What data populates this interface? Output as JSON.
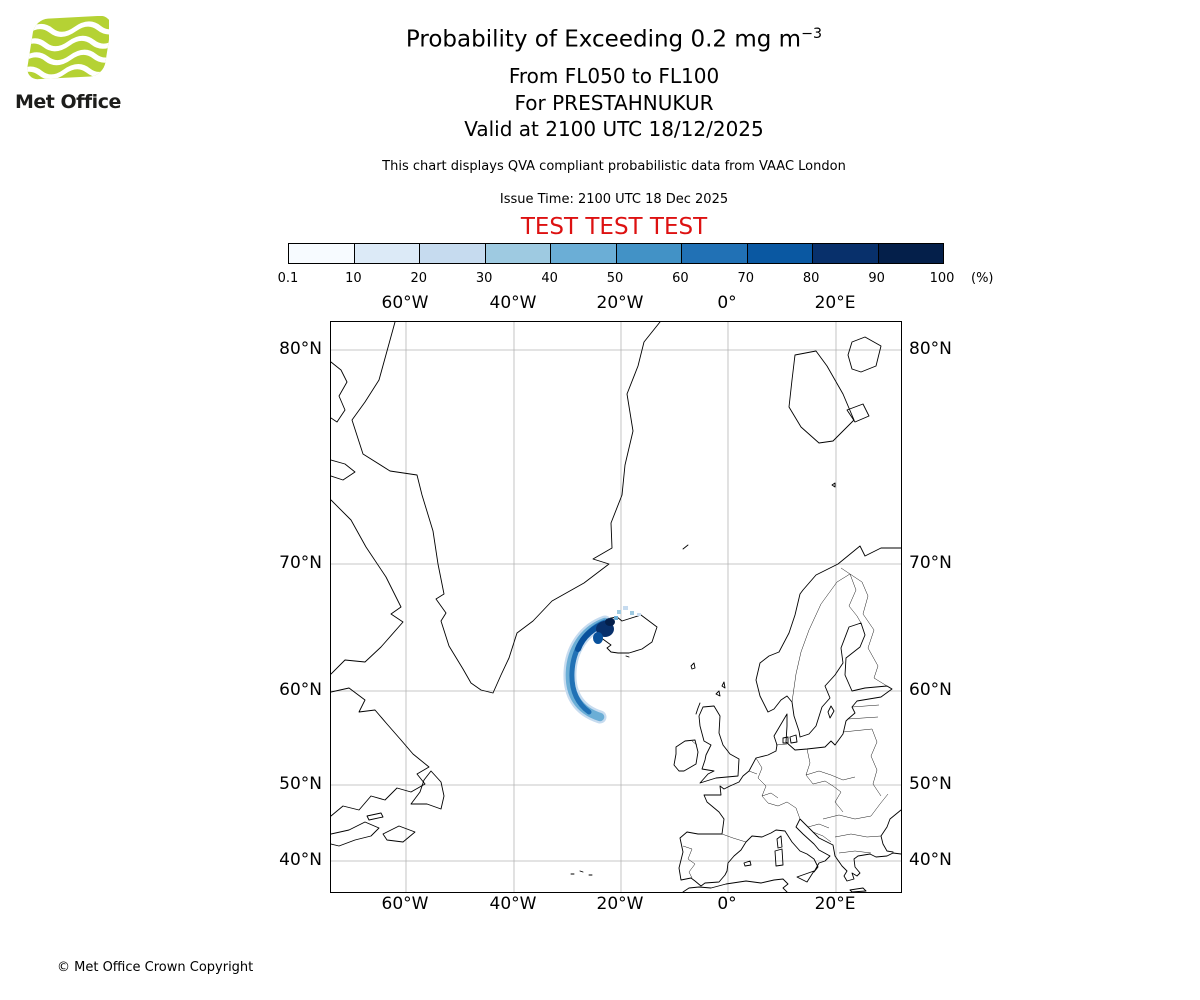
{
  "logo": {
    "brand": "Met Office"
  },
  "header": {
    "title_main": "Probability of Exceeding 0.2 mg m",
    "title_superscript": "−3",
    "flight_levels": "From FL050 to FL100",
    "volcano": "For PRESTAHNUKUR",
    "valid_time": "Valid at 2100 UTC 18/12/2025",
    "description": "This chart displays QVA compliant probabilistic data from VAAC London",
    "issue_time": "Issue Time: 2100 UTC 18 Dec 2025",
    "test_banner": "TEST TEST TEST"
  },
  "colorbar": {
    "tick_labels": [
      "0.1",
      "10",
      "20",
      "30",
      "40",
      "50",
      "60",
      "70",
      "80",
      "90",
      "100"
    ],
    "unit": "(%)",
    "segment_colors": [
      "#f7fbff",
      "#dceaf7",
      "#c6dbef",
      "#9ecae1",
      "#6baed6",
      "#4292c6",
      "#2171b5",
      "#0a58a2",
      "#08306b",
      "#041f4a"
    ]
  },
  "map": {
    "x_tick_labels": [
      "60°W",
      "40°W",
      "20°W",
      "0°",
      "20°E"
    ],
    "y_tick_labels": [
      "80°N",
      "70°N",
      "60°N",
      "50°N",
      "40°N"
    ]
  },
  "colors": {
    "test_banner": "#dd1111",
    "logo_green": "#b5d234",
    "graticule": "#b5b5b5",
    "coastline": "#000000"
  },
  "footer": {
    "copyright": "© Met Office Crown Copyright"
  }
}
